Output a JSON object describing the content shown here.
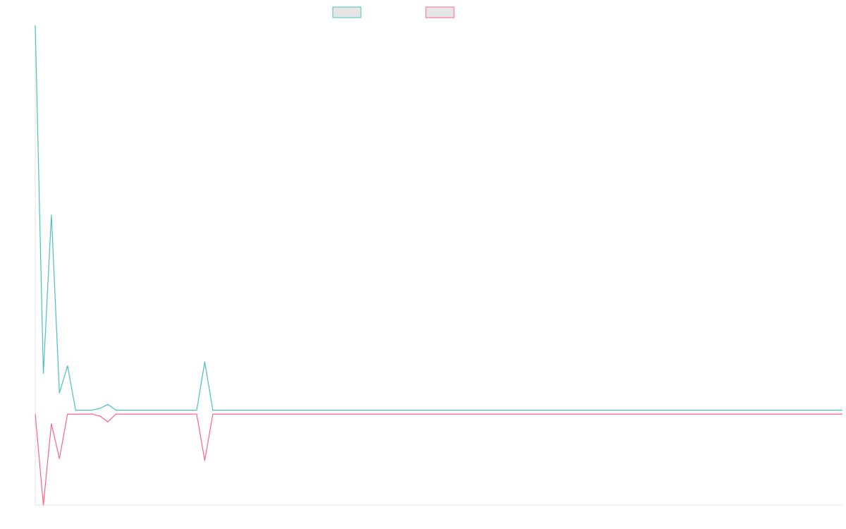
{
  "chart_data": {
    "type": "line",
    "grid": false,
    "legend": {
      "placement": "top-center",
      "entries": [
        {
          "label": "",
          "color": "#4bc0c0"
        },
        {
          "label": "",
          "color": "#ff6384"
        }
      ]
    },
    "x": [
      0,
      5,
      10,
      15,
      20,
      25,
      30,
      35,
      40,
      45,
      50,
      55,
      60,
      65,
      70,
      75,
      80,
      85,
      90,
      95,
      100,
      105,
      110,
      115,
      120,
      125,
      130,
      135,
      140,
      145,
      150,
      155,
      160,
      165,
      170,
      175,
      180,
      185,
      190,
      195,
      200,
      205,
      210,
      215,
      220,
      225,
      230,
      235,
      240,
      245,
      250,
      255,
      260,
      265,
      270,
      275,
      280,
      285,
      290,
      295,
      300,
      305,
      310,
      315,
      320,
      325,
      330,
      335,
      340,
      345,
      350,
      355,
      360,
      365,
      370,
      375,
      380,
      385,
      390,
      395,
      400,
      405,
      410,
      415,
      420,
      425,
      430,
      435,
      440,
      445,
      450,
      455,
      460,
      465,
      470,
      475,
      480,
      485,
      490,
      495,
      500
    ],
    "xlim": [
      0,
      500
    ],
    "ylim": [
      -240,
      1000
    ],
    "series": [
      {
        "color": "#4bc0c0",
        "values": [
          1000,
          100,
          510,
          50,
          120,
          5,
          5,
          5,
          10,
          20,
          5,
          5,
          5,
          5,
          5,
          5,
          5,
          5,
          5,
          5,
          5,
          130,
          5,
          5,
          5,
          5,
          5,
          5,
          5,
          5,
          5,
          5,
          5,
          5,
          5,
          5,
          5,
          5,
          5,
          5,
          5,
          5,
          5,
          5,
          5,
          5,
          5,
          5,
          5,
          5,
          5,
          5,
          5,
          5,
          5,
          5,
          5,
          5,
          5,
          5,
          5,
          5,
          5,
          5,
          5,
          5,
          5,
          5,
          5,
          5,
          5,
          5,
          5,
          5,
          5,
          5,
          5,
          5,
          5,
          5,
          5,
          5,
          5,
          5,
          5,
          5,
          5,
          5,
          5,
          5,
          5,
          5,
          5,
          5,
          5,
          5,
          5,
          5,
          5,
          5,
          5
        ]
      },
      {
        "color": "#ff6384",
        "values": [
          -5,
          -240,
          -30,
          -120,
          -5,
          -5,
          -5,
          -5,
          -10,
          -25,
          -5,
          -5,
          -5,
          -5,
          -5,
          -5,
          -5,
          -5,
          -5,
          -5,
          -5,
          -125,
          -5,
          -5,
          -5,
          -5,
          -5,
          -5,
          -5,
          -5,
          -5,
          -5,
          -5,
          -5,
          -5,
          -5,
          -5,
          -5,
          -5,
          -5,
          -5,
          -5,
          -5,
          -5,
          -5,
          -5,
          -5,
          -5,
          -5,
          -5,
          -5,
          -5,
          -5,
          -5,
          -5,
          -5,
          -5,
          -5,
          -5,
          -5,
          -5,
          -5,
          -5,
          -5,
          -5,
          -5,
          -5,
          -5,
          -5,
          -5,
          -5,
          -5,
          -5,
          -5,
          -5,
          -5,
          -5,
          -5,
          -5,
          -5,
          -5,
          -5,
          -5,
          -5,
          -5,
          -5,
          -5,
          -5,
          -5,
          -5,
          -5,
          -5,
          -5,
          -5,
          -5,
          -5,
          -5,
          -5,
          -5,
          -5,
          -5
        ]
      }
    ]
  }
}
